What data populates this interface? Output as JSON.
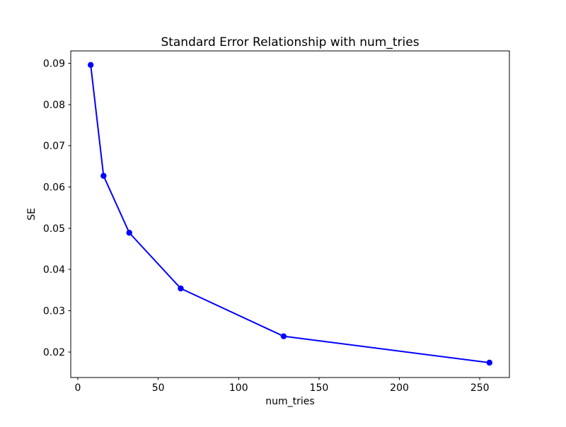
{
  "figure": {
    "background": "#ffffff"
  },
  "chart_data": {
    "type": "line",
    "title": "Standard Error Relationship with num_tries",
    "xlabel": "num_tries",
    "ylabel": "SE",
    "x": [
      8,
      16,
      32,
      64,
      128,
      256
    ],
    "y": [
      0.0896,
      0.0627,
      0.0489,
      0.0354,
      0.0238,
      0.0174
    ],
    "series_name": "SE",
    "line_color": "#0000ff",
    "marker": "circle",
    "marker_radius": 4.2,
    "line_width": 2,
    "xticks": [
      0,
      50,
      100,
      150,
      200,
      250
    ],
    "xtick_labels": [
      "0",
      "50",
      "100",
      "150",
      "200",
      "250"
    ],
    "yticks": [
      0.02,
      0.03,
      0.04,
      0.05,
      0.06,
      0.07,
      0.08,
      0.09
    ],
    "ytick_labels": [
      "0.02",
      "0.03",
      "0.04",
      "0.05",
      "0.06",
      "0.07",
      "0.08",
      "0.09"
    ],
    "xlim": [
      -4.4,
      268.4
    ],
    "ylim": [
      0.0138,
      0.093
    ],
    "grid": false,
    "legend": "none",
    "axes_color": "#000000"
  }
}
